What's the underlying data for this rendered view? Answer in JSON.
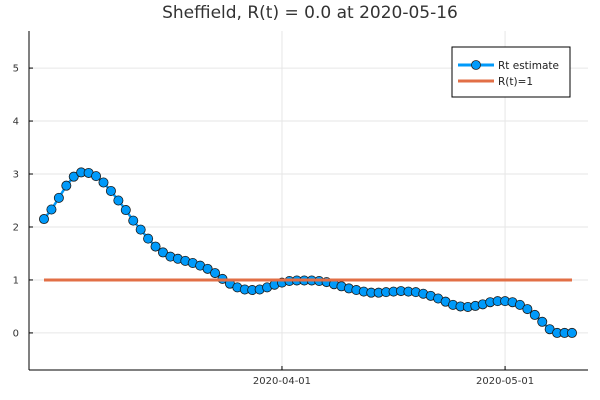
{
  "chart_data": {
    "type": "line",
    "title": "Sheffield, R(t) = 0.0 at 2020-05-16",
    "xlabel": "",
    "ylabel": "",
    "grid": true,
    "legend_position": "top-right",
    "y_ticks": [
      0,
      1,
      2,
      3,
      4,
      5
    ],
    "ylim": [
      -0.7,
      5.7
    ],
    "x_ticks": [
      {
        "label": "2020-04-01",
        "day": 33
      },
      {
        "label": "2020-05-01",
        "day": 63
      }
    ],
    "series": [
      {
        "name": "Rt estimate",
        "color": "#009AFA",
        "style": "line-with-circles",
        "x_start": "2020-03-01",
        "values": [
          2.15,
          2.33,
          2.55,
          2.78,
          2.95,
          3.03,
          3.02,
          2.96,
          2.84,
          2.68,
          2.5,
          2.32,
          2.12,
          1.95,
          1.78,
          1.63,
          1.52,
          1.44,
          1.4,
          1.36,
          1.32,
          1.27,
          1.21,
          1.13,
          1.02,
          0.93,
          0.86,
          0.82,
          0.81,
          0.82,
          0.86,
          0.91,
          0.95,
          0.98,
          0.99,
          0.99,
          0.99,
          0.98,
          0.96,
          0.92,
          0.88,
          0.84,
          0.81,
          0.78,
          0.76,
          0.76,
          0.77,
          0.78,
          0.79,
          0.78,
          0.77,
          0.74,
          0.7,
          0.65,
          0.59,
          0.53,
          0.5,
          0.49,
          0.51,
          0.54,
          0.58,
          0.6,
          0.6,
          0.58,
          0.53,
          0.45,
          0.34,
          0.21,
          0.07,
          0.0,
          0.0,
          0.0
        ]
      },
      {
        "name": "R(t)=1",
        "color": "#E26F46",
        "style": "line",
        "x_start": "2020-03-01",
        "values": [
          1,
          1,
          1,
          1,
          1,
          1,
          1,
          1,
          1,
          1,
          1,
          1,
          1,
          1,
          1,
          1,
          1,
          1,
          1,
          1,
          1,
          1,
          1,
          1,
          1,
          1,
          1,
          1,
          1,
          1,
          1,
          1,
          1,
          1,
          1,
          1,
          1,
          1,
          1,
          1,
          1,
          1,
          1,
          1,
          1,
          1,
          1,
          1,
          1,
          1,
          1,
          1,
          1,
          1,
          1,
          1,
          1,
          1,
          1,
          1,
          1,
          1,
          1,
          1,
          1,
          1,
          1,
          1,
          1,
          1,
          1,
          1
        ]
      }
    ]
  }
}
